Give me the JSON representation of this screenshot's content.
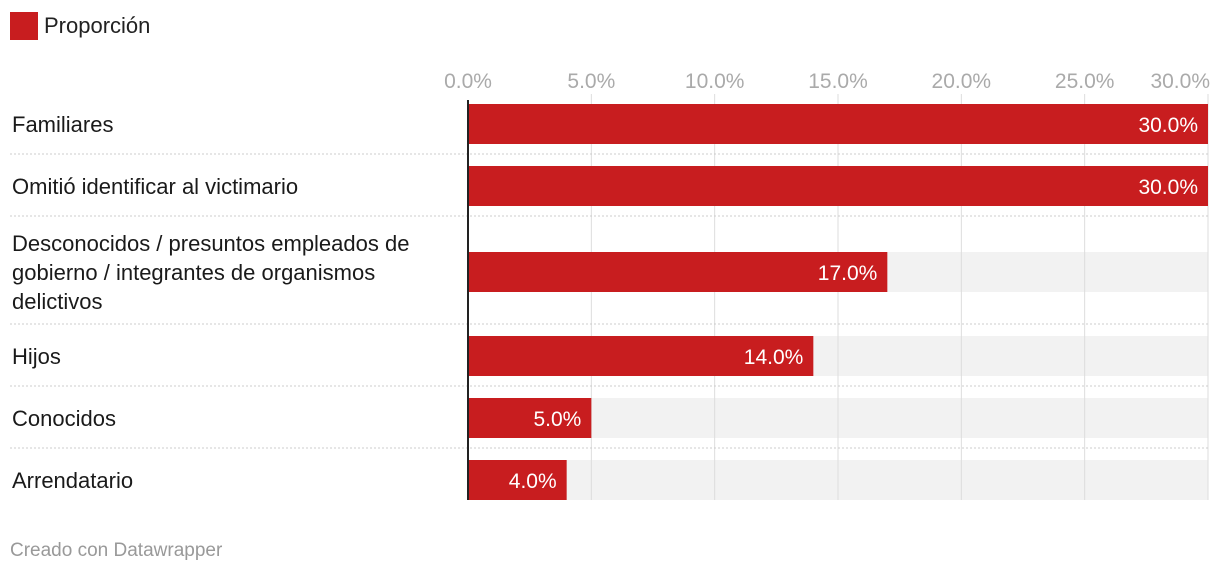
{
  "chart_data": {
    "type": "bar",
    "orientation": "horizontal",
    "series": [
      {
        "name": "Proporción",
        "values": [
          30.0,
          30.0,
          17.0,
          14.0,
          5.0,
          4.0
        ],
        "labels": [
          "30.0%",
          "30.0%",
          "17.0%",
          "14.0%",
          "5.0%",
          "4.0%"
        ]
      }
    ],
    "categories": [
      "Familiares",
      "Omitió identificar al victimario",
      "Desconocidos / presuntos empleados de gobierno / integrantes de organismos delictivos",
      "Hijos",
      "Conocidos",
      "Arrendatario"
    ],
    "category_lines": [
      [
        "Familiares"
      ],
      [
        "Omitió identificar al victimario"
      ],
      [
        "Desconocidos / presuntos empleados de",
        "gobierno / integrantes de organismos",
        "delictivos"
      ],
      [
        "Hijos"
      ],
      [
        "Conocidos"
      ],
      [
        "Arrendatario"
      ]
    ],
    "xlim": [
      0,
      30
    ],
    "x_ticks": [
      0,
      5,
      10,
      15,
      20,
      25,
      30
    ],
    "x_tick_labels": [
      "0.0%",
      "5.0%",
      "10.0%",
      "15.0%",
      "20.0%",
      "25.0%",
      "30.0%"
    ],
    "grid": true,
    "legend_position": "top-left",
    "colors": {
      "bar": "#c81d1f",
      "background_band": "#f2f2f2",
      "grid": "#dddddd",
      "axis": "#222222"
    }
  },
  "footer": {
    "credit": "Creado con Datawrapper"
  }
}
